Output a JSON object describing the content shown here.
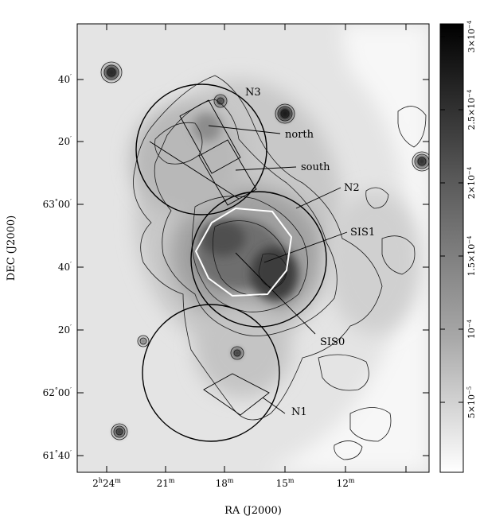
{
  "figure": {
    "xlabel": "RA (J2000)",
    "ylabel": "DEC (J2000)",
    "x_ticks": [
      {
        "h": "2",
        "hs": "h",
        "m": "24",
        "ms": "m"
      },
      {
        "h": "",
        "hs": "",
        "m": "21",
        "ms": "m"
      },
      {
        "h": "",
        "hs": "",
        "m": "18",
        "ms": "m"
      },
      {
        "h": "",
        "hs": "",
        "m": "15",
        "ms": "m"
      },
      {
        "h": "",
        "hs": "",
        "m": "12",
        "ms": "m"
      }
    ],
    "y_ticks": [
      {
        "d": "",
        "ds": "",
        "m": "40",
        "ms": "′"
      },
      {
        "d": "",
        "ds": "",
        "m": "20",
        "ms": "′"
      },
      {
        "d": "63",
        "ds": "°",
        "m": "00",
        "ms": "′"
      },
      {
        "d": "",
        "ds": "",
        "m": "40",
        "ms": "′"
      },
      {
        "d": "",
        "ds": "",
        "m": "20",
        "ms": "′"
      },
      {
        "d": "62",
        "ds": "°",
        "m": "00",
        "ms": "′"
      },
      {
        "d": "61",
        "ds": "°",
        "m": "40",
        "ms": "′"
      }
    ],
    "annotations": {
      "n3": "N3",
      "north": "north",
      "south": "south",
      "n2": "N2",
      "sis1": "SIS1",
      "sis0": "SIS0",
      "n1": "N1"
    },
    "colorbar": {
      "ticks": [
        {
          "base": "3×10",
          "exp": "−4"
        },
        {
          "base": "2.5×10",
          "exp": "−4"
        },
        {
          "base": "2×10",
          "exp": "−4"
        },
        {
          "base": "1.5×10",
          "exp": "−4"
        },
        {
          "base": "10",
          "exp": "−4"
        },
        {
          "base": "5×10",
          "exp": "−5"
        }
      ]
    },
    "colors": {
      "circle": "#000000",
      "sis_outline": "#ffffff",
      "background_map": "#dcdcdc"
    }
  }
}
